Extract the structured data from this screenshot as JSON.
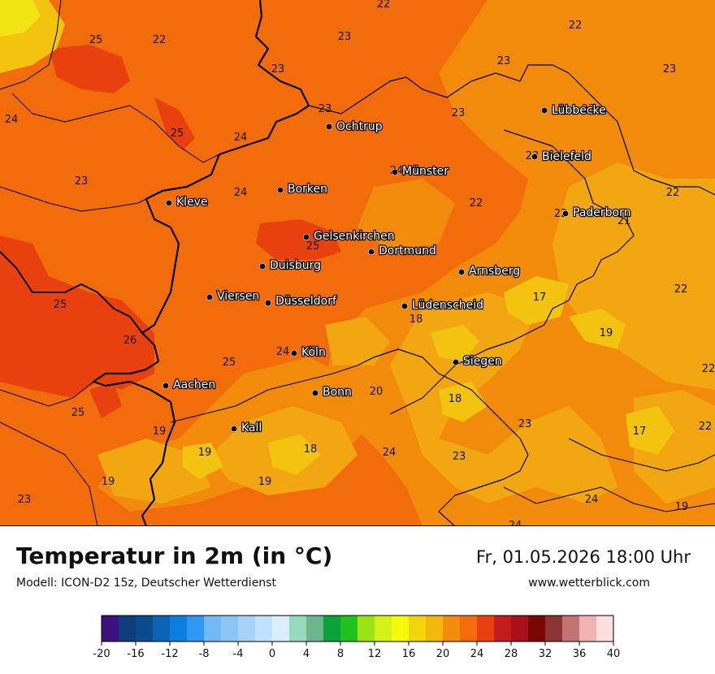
{
  "title": "Temperatur in 2m (in °C)",
  "model": "Modell: ICON-D2 15z, Deutscher Wetterdienst",
  "datetime": "Fr, 01.05.2026 18:00 Uhr",
  "website": "www.wetterblick.com",
  "colors": {
    "t17": "#f2c40f",
    "t19": "#f2a712",
    "t22": "#f28a0c",
    "t24": "#f26c0c",
    "t25": "#e8400e",
    "t16": "#f2e414",
    "border": "#000000"
  },
  "cities": [
    {
      "name": "Ochtrup"
    },
    {
      "name": "Lübbecke"
    },
    {
      "name": "Bielefeld"
    },
    {
      "name": "Münster"
    },
    {
      "name": "Borken"
    },
    {
      "name": "Kleve"
    },
    {
      "name": "Paderborn"
    },
    {
      "name": "Gelsenkirchen"
    },
    {
      "name": "Dortmund"
    },
    {
      "name": "Duisburg"
    },
    {
      "name": "Arnsberg"
    },
    {
      "name": "Viersen"
    },
    {
      "name": "Düsseldorf"
    },
    {
      "name": "Lüdenscheid"
    },
    {
      "name": "Köln"
    },
    {
      "name": "Siegen"
    },
    {
      "name": "Aachen"
    },
    {
      "name": "Bonn"
    },
    {
      "name": "Kall"
    }
  ],
  "values": [
    "22",
    "25",
    "22",
    "23",
    "22",
    "23",
    "23",
    "23",
    "24",
    "23",
    "23",
    "25",
    "24",
    "23",
    "24",
    "23",
    "24",
    "22",
    "22",
    "21",
    "23",
    "25",
    "22",
    "17",
    "25",
    "22",
    "18",
    "26",
    "19",
    "24",
    "25",
    "25",
    "20",
    "18",
    "23",
    "17",
    "22",
    "19",
    "19",
    "18",
    "24",
    "23",
    "19",
    "19",
    "24",
    "23",
    "19",
    "24"
  ],
  "scale": {
    "ticks": [
      "-20",
      "-16",
      "-12",
      "-8",
      "-4",
      "0",
      "4",
      "8",
      "12",
      "16",
      "20",
      "24",
      "28",
      "32",
      "36",
      "40"
    ],
    "colors": [
      "#3d1180",
      "#0f3c7a",
      "#0b4d8c",
      "#0a63b5",
      "#0a7fde",
      "#2f98f0",
      "#73b9f5",
      "#8cc6f7",
      "#a6d3fa",
      "#c2e1fc",
      "#dcedfd",
      "#96d9bd",
      "#6bb58f",
      "#0da13a",
      "#1fc21f",
      "#9ae314",
      "#d3f21a",
      "#f5fa0d",
      "#f2d40d",
      "#f2b90d",
      "#f28c0c",
      "#f26c0c",
      "#e8400e",
      "#c21c1c",
      "#a8101a",
      "#7a0606",
      "#8c3333",
      "#c27373",
      "#f2b3b3",
      "#fcdede"
    ]
  }
}
